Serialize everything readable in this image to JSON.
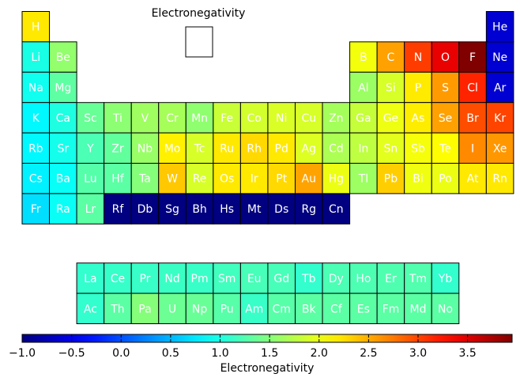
{
  "chart_data": {
    "type": "heatmap",
    "title": "Electronegativity",
    "colorbar": {
      "label": "Electronegativity",
      "colormap": "jet",
      "range": [
        -1.0,
        3.95
      ],
      "ticks": [
        "−1.0",
        "−0.5",
        "0.0",
        "0.5",
        "1.0",
        "1.5",
        "2.0",
        "2.5",
        "3.0",
        "3.5"
      ],
      "tick_values": [
        -1.0,
        -0.5,
        0.0,
        0.5,
        1.0,
        1.5,
        2.0,
        2.5,
        3.0,
        3.5
      ]
    },
    "missing_value_color": "#000080",
    "elements": [
      {
        "symbol": "H",
        "period": 1,
        "group": 1,
        "value": 2.2
      },
      {
        "symbol": "He",
        "period": 1,
        "group": 18,
        "value": -0.6
      },
      {
        "symbol": "Li",
        "period": 2,
        "group": 1,
        "value": 0.98
      },
      {
        "symbol": "Be",
        "period": 2,
        "group": 2,
        "value": 1.57
      },
      {
        "symbol": "B",
        "period": 2,
        "group": 13,
        "value": 2.04
      },
      {
        "symbol": "C",
        "period": 2,
        "group": 14,
        "value": 2.55
      },
      {
        "symbol": "N",
        "period": 2,
        "group": 15,
        "value": 3.04
      },
      {
        "symbol": "O",
        "period": 2,
        "group": 16,
        "value": 3.44
      },
      {
        "symbol": "F",
        "period": 2,
        "group": 17,
        "value": 3.98
      },
      {
        "symbol": "Ne",
        "period": 2,
        "group": 18,
        "value": -0.6
      },
      {
        "symbol": "Na",
        "period": 3,
        "group": 1,
        "value": 0.93
      },
      {
        "symbol": "Mg",
        "period": 3,
        "group": 2,
        "value": 1.31
      },
      {
        "symbol": "Al",
        "period": 3,
        "group": 13,
        "value": 1.61
      },
      {
        "symbol": "Si",
        "period": 3,
        "group": 14,
        "value": 1.9
      },
      {
        "symbol": "P",
        "period": 3,
        "group": 15,
        "value": 2.19
      },
      {
        "symbol": "S",
        "period": 3,
        "group": 16,
        "value": 2.58
      },
      {
        "symbol": "Cl",
        "period": 3,
        "group": 17,
        "value": 3.16
      },
      {
        "symbol": "Ar",
        "period": 3,
        "group": 18,
        "value": -0.6
      },
      {
        "symbol": "K",
        "period": 4,
        "group": 1,
        "value": 0.82
      },
      {
        "symbol": "Ca",
        "period": 4,
        "group": 2,
        "value": 1.0
      },
      {
        "symbol": "Sc",
        "period": 4,
        "group": 3,
        "value": 1.36
      },
      {
        "symbol": "Ti",
        "period": 4,
        "group": 4,
        "value": 1.54
      },
      {
        "symbol": "V",
        "period": 4,
        "group": 5,
        "value": 1.63
      },
      {
        "symbol": "Cr",
        "period": 4,
        "group": 6,
        "value": 1.66
      },
      {
        "symbol": "Mn",
        "period": 4,
        "group": 7,
        "value": 1.55
      },
      {
        "symbol": "Fe",
        "period": 4,
        "group": 8,
        "value": 1.83
      },
      {
        "symbol": "Co",
        "period": 4,
        "group": 9,
        "value": 1.88
      },
      {
        "symbol": "Ni",
        "period": 4,
        "group": 10,
        "value": 1.91
      },
      {
        "symbol": "Cu",
        "period": 4,
        "group": 11,
        "value": 1.9
      },
      {
        "symbol": "Zn",
        "period": 4,
        "group": 12,
        "value": 1.65
      },
      {
        "symbol": "Ga",
        "period": 4,
        "group": 13,
        "value": 1.81
      },
      {
        "symbol": "Ge",
        "period": 4,
        "group": 14,
        "value": 2.01
      },
      {
        "symbol": "As",
        "period": 4,
        "group": 15,
        "value": 2.18
      },
      {
        "symbol": "Se",
        "period": 4,
        "group": 16,
        "value": 2.55
      },
      {
        "symbol": "Br",
        "period": 4,
        "group": 17,
        "value": 2.96
      },
      {
        "symbol": "Kr",
        "period": 4,
        "group": 18,
        "value": 3.0
      },
      {
        "symbol": "Rb",
        "period": 5,
        "group": 1,
        "value": 0.82
      },
      {
        "symbol": "Sr",
        "period": 5,
        "group": 2,
        "value": 0.95
      },
      {
        "symbol": "Y",
        "period": 5,
        "group": 3,
        "value": 1.22
      },
      {
        "symbol": "Zr",
        "period": 5,
        "group": 4,
        "value": 1.33
      },
      {
        "symbol": "Nb",
        "period": 5,
        "group": 5,
        "value": 1.6
      },
      {
        "symbol": "Mo",
        "period": 5,
        "group": 6,
        "value": 2.16
      },
      {
        "symbol": "Tc",
        "period": 5,
        "group": 7,
        "value": 1.9
      },
      {
        "symbol": "Ru",
        "period": 5,
        "group": 8,
        "value": 2.2
      },
      {
        "symbol": "Rh",
        "period": 5,
        "group": 9,
        "value": 2.28
      },
      {
        "symbol": "Pd",
        "period": 5,
        "group": 10,
        "value": 2.2
      },
      {
        "symbol": "Ag",
        "period": 5,
        "group": 11,
        "value": 1.93
      },
      {
        "symbol": "Cd",
        "period": 5,
        "group": 12,
        "value": 1.69
      },
      {
        "symbol": "In",
        "period": 5,
        "group": 13,
        "value": 1.78
      },
      {
        "symbol": "Sn",
        "period": 5,
        "group": 14,
        "value": 1.96
      },
      {
        "symbol": "Sb",
        "period": 5,
        "group": 15,
        "value": 2.05
      },
      {
        "symbol": "Te",
        "period": 5,
        "group": 16,
        "value": 2.1
      },
      {
        "symbol": "I",
        "period": 5,
        "group": 17,
        "value": 2.66
      },
      {
        "symbol": "Xe",
        "period": 5,
        "group": 18,
        "value": 2.6
      },
      {
        "symbol": "Cs",
        "period": 6,
        "group": 1,
        "value": 0.79
      },
      {
        "symbol": "Ba",
        "period": 6,
        "group": 2,
        "value": 0.89
      },
      {
        "symbol": "Lu",
        "period": 6,
        "group": 3,
        "value": 1.27
      },
      {
        "symbol": "Hf",
        "period": 6,
        "group": 4,
        "value": 1.3
      },
      {
        "symbol": "Ta",
        "period": 6,
        "group": 5,
        "value": 1.5
      },
      {
        "symbol": "W",
        "period": 6,
        "group": 6,
        "value": 2.36
      },
      {
        "symbol": "Re",
        "period": 6,
        "group": 7,
        "value": 1.9
      },
      {
        "symbol": "Os",
        "period": 6,
        "group": 8,
        "value": 2.2
      },
      {
        "symbol": "Ir",
        "period": 6,
        "group": 9,
        "value": 2.2
      },
      {
        "symbol": "Pt",
        "period": 6,
        "group": 10,
        "value": 2.28
      },
      {
        "symbol": "Au",
        "period": 6,
        "group": 11,
        "value": 2.54
      },
      {
        "symbol": "Hg",
        "period": 6,
        "group": 12,
        "value": 2.0
      },
      {
        "symbol": "Tl",
        "period": 6,
        "group": 13,
        "value": 1.62
      },
      {
        "symbol": "Pb",
        "period": 6,
        "group": 14,
        "value": 2.33
      },
      {
        "symbol": "Bi",
        "period": 6,
        "group": 15,
        "value": 2.02
      },
      {
        "symbol": "Po",
        "period": 6,
        "group": 16,
        "value": 2.0
      },
      {
        "symbol": "At",
        "period": 6,
        "group": 17,
        "value": 2.2
      },
      {
        "symbol": "Rn",
        "period": 6,
        "group": 18,
        "value": 2.2
      },
      {
        "symbol": "Fr",
        "period": 7,
        "group": 1,
        "value": 0.7
      },
      {
        "symbol": "Ra",
        "period": 7,
        "group": 2,
        "value": 0.9
      },
      {
        "symbol": "Lr",
        "period": 7,
        "group": 3,
        "value": 1.3
      },
      {
        "symbol": "Rf",
        "period": 7,
        "group": 4,
        "value": null
      },
      {
        "symbol": "Db",
        "period": 7,
        "group": 5,
        "value": null
      },
      {
        "symbol": "Sg",
        "period": 7,
        "group": 6,
        "value": null
      },
      {
        "symbol": "Bh",
        "period": 7,
        "group": 7,
        "value": null
      },
      {
        "symbol": "Hs",
        "period": 7,
        "group": 8,
        "value": null
      },
      {
        "symbol": "Mt",
        "period": 7,
        "group": 9,
        "value": null
      },
      {
        "symbol": "Ds",
        "period": 7,
        "group": 10,
        "value": null
      },
      {
        "symbol": "Rg",
        "period": 7,
        "group": 11,
        "value": null
      },
      {
        "symbol": "Cn",
        "period": 7,
        "group": 12,
        "value": null
      },
      {
        "symbol": "La",
        "period": 9,
        "group": 3,
        "value": 1.1
      },
      {
        "symbol": "Ce",
        "period": 9,
        "group": 4,
        "value": 1.12
      },
      {
        "symbol": "Pr",
        "period": 9,
        "group": 5,
        "value": 1.13
      },
      {
        "symbol": "Nd",
        "period": 9,
        "group": 6,
        "value": 1.14
      },
      {
        "symbol": "Pm",
        "period": 9,
        "group": 7,
        "value": 1.13
      },
      {
        "symbol": "Sm",
        "period": 9,
        "group": 8,
        "value": 1.17
      },
      {
        "symbol": "Eu",
        "period": 9,
        "group": 9,
        "value": 1.2
      },
      {
        "symbol": "Gd",
        "period": 9,
        "group": 10,
        "value": 1.2
      },
      {
        "symbol": "Tb",
        "period": 9,
        "group": 11,
        "value": 1.1
      },
      {
        "symbol": "Dy",
        "period": 9,
        "group": 12,
        "value": 1.22
      },
      {
        "symbol": "Ho",
        "period": 9,
        "group": 13,
        "value": 1.23
      },
      {
        "symbol": "Er",
        "period": 9,
        "group": 14,
        "value": 1.24
      },
      {
        "symbol": "Tm",
        "period": 9,
        "group": 15,
        "value": 1.25
      },
      {
        "symbol": "Yb",
        "period": 9,
        "group": 16,
        "value": 1.1
      },
      {
        "symbol": "Ac",
        "period": 10,
        "group": 3,
        "value": 1.1
      },
      {
        "symbol": "Th",
        "period": 10,
        "group": 4,
        "value": 1.3
      },
      {
        "symbol": "Pa",
        "period": 10,
        "group": 5,
        "value": 1.5
      },
      {
        "symbol": "U",
        "period": 10,
        "group": 6,
        "value": 1.38
      },
      {
        "symbol": "Np",
        "period": 10,
        "group": 7,
        "value": 1.36
      },
      {
        "symbol": "Pu",
        "period": 10,
        "group": 8,
        "value": 1.28
      },
      {
        "symbol": "Am",
        "period": 10,
        "group": 9,
        "value": 1.13
      },
      {
        "symbol": "Cm",
        "period": 10,
        "group": 10,
        "value": 1.28
      },
      {
        "symbol": "Bk",
        "period": 10,
        "group": 11,
        "value": 1.3
      },
      {
        "symbol": "Cf",
        "period": 10,
        "group": 12,
        "value": 1.3
      },
      {
        "symbol": "Es",
        "period": 10,
        "group": 13,
        "value": 1.3
      },
      {
        "symbol": "Fm",
        "period": 10,
        "group": 14,
        "value": 1.3
      },
      {
        "symbol": "Md",
        "period": 10,
        "group": 15,
        "value": 1.3
      },
      {
        "symbol": "No",
        "period": 10,
        "group": 16,
        "value": 1.3
      }
    ]
  }
}
